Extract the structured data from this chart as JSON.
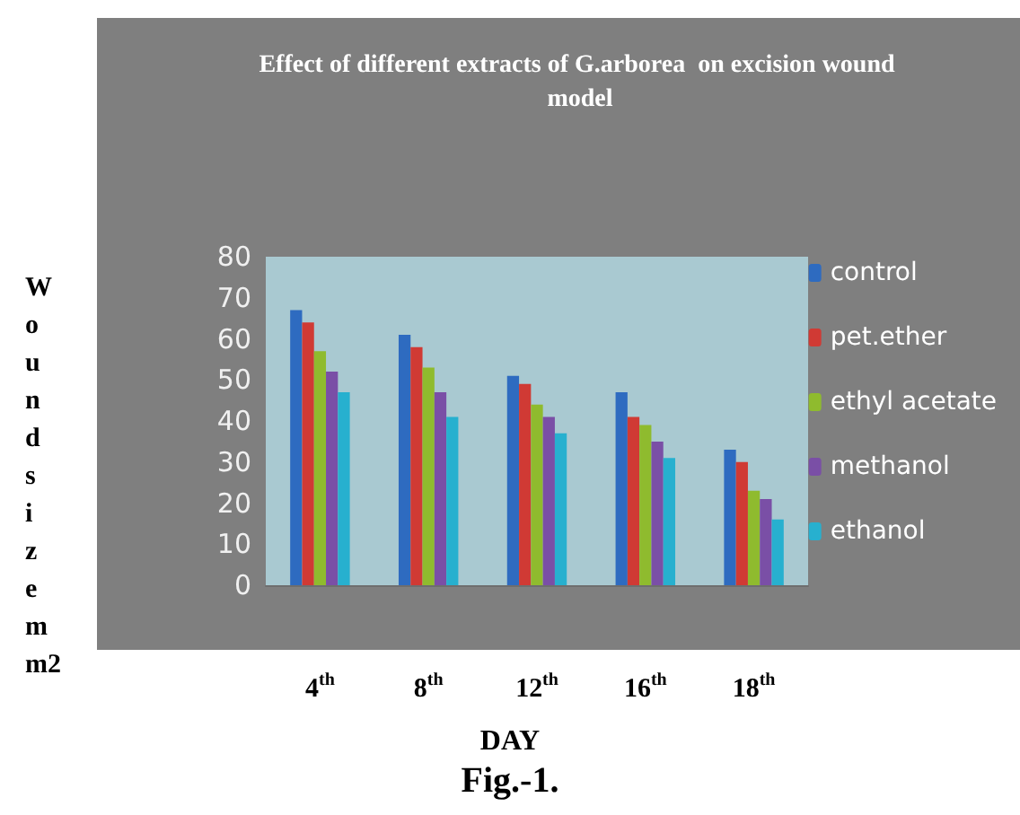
{
  "chart_data": {
    "type": "bar",
    "title": "Effect of different extracts of G.arborea  on excision wound model",
    "xlabel": "DAY",
    "ylabel": "Wound size mm2",
    "annotations": [
      "Fig.-1."
    ],
    "categories": [
      "4$^{th}$",
      "8$^{th}$",
      "12$^{th}$",
      "16$^{th}$",
      "18$^{th}$"
    ],
    "series": [
      {
        "name": "control",
        "color": "#2e6bc0",
        "values": [
          67,
          61,
          51,
          47,
          33
        ]
      },
      {
        "name": "pet.ether",
        "color": "#d03a34",
        "values": [
          64,
          58,
          49,
          41,
          30
        ]
      },
      {
        "name": "ethyl acetate",
        "color": "#8fbb2e",
        "values": [
          57,
          53,
          44,
          39,
          23
        ]
      },
      {
        "name": "methanol",
        "color": "#7a4fa6",
        "values": [
          52,
          47,
          41,
          35,
          21
        ]
      },
      {
        "name": "ethanol",
        "color": "#27b0cf",
        "values": [
          47,
          41,
          37,
          31,
          16
        ]
      }
    ],
    "ylim": [
      0,
      80
    ],
    "yticks": [
      0,
      10,
      20,
      30,
      40,
      50,
      60,
      70,
      80
    ],
    "grid": false,
    "legend": "right"
  }
}
